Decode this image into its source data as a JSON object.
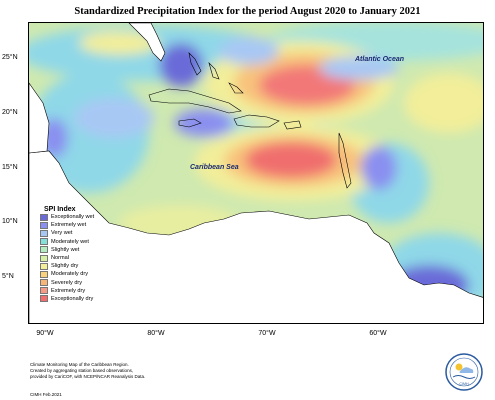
{
  "title": "Standardized Precipitation Index for the period August 2020 to January 2021",
  "latitude_labels": [
    "25°N",
    "20°N",
    "15°N",
    "10°N",
    "5°N"
  ],
  "longitude_labels": [
    "90°W",
    "80°W",
    "70°W",
    "60°W"
  ],
  "ocean_labels": {
    "atlantic": "Atlantic Ocean",
    "caribbean": "Caribbean Sea"
  },
  "legend": {
    "title": "SPI Index",
    "items": [
      {
        "label": "Exceptionally wet",
        "color": "#6a6ad8"
      },
      {
        "label": "Extremely wet",
        "color": "#8a8ff0"
      },
      {
        "label": "Very wet",
        "color": "#a8c8f4"
      },
      {
        "label": "Moderately wet",
        "color": "#86e0da"
      },
      {
        "label": "Slightly wet",
        "color": "#b4ecc2"
      },
      {
        "label": "Normal",
        "color": "#d6f0a8"
      },
      {
        "label": "Slightly dry",
        "color": "#f2ee9a"
      },
      {
        "label": "Moderately dry",
        "color": "#f8d27c"
      },
      {
        "label": "Severely dry",
        "color": "#f6b67a"
      },
      {
        "label": "Extremely dry",
        "color": "#f49a86"
      },
      {
        "label": "Exceptionally dry",
        "color": "#f06e6e"
      }
    ]
  },
  "footer": {
    "line1": "Climate Monitoring Map of the Caribbean Region.",
    "line2": "Created by aggregating station based observations,",
    "line3": "provided by CariCOF, with NCEP/NCAR Reanalysis Data.",
    "credit": "CIMH Feb.2021"
  },
  "logo_text": "CIMH"
}
